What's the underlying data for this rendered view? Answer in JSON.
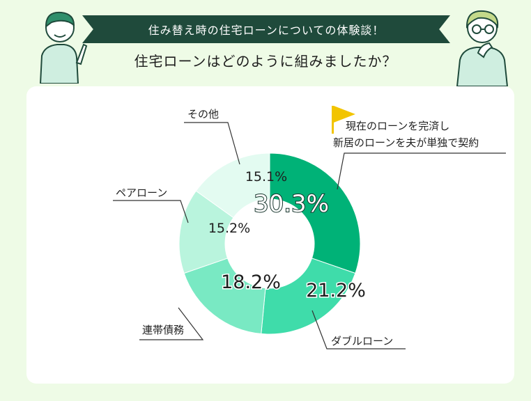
{
  "header": {
    "banner_text": "住み替え時の住宅ローンについての体験談！",
    "question": "住宅ローンはどのように組みましたか？"
  },
  "colors": {
    "background": "#eefbe6",
    "banner": "#1f4a3b",
    "flag": "#f2c400",
    "card": "#ffffff"
  },
  "chart_data": {
    "type": "pie",
    "donut": true,
    "title": "",
    "slices": [
      {
        "label_lines": [
          "現在のローンを完済し",
          "新居のローンを夫が単独で契約"
        ],
        "value": 30.3,
        "value_label": "30.3%",
        "color": "#00b277",
        "flag_icon": true
      },
      {
        "label_lines": [
          "ダブルローン"
        ],
        "value": 21.2,
        "value_label": "21.2%",
        "color": "#3fdcaa"
      },
      {
        "label_lines": [
          "連帯債務"
        ],
        "value": 18.2,
        "value_label": "18.2%",
        "color": "#79e9c3"
      },
      {
        "label_lines": [
          "ペアローン"
        ],
        "value": 15.2,
        "value_label": "15.2%",
        "color": "#b9f4dd"
      },
      {
        "label_lines": [
          "その他"
        ],
        "value": 15.1,
        "value_label": "15.1%",
        "color": "#e3fbf1"
      }
    ]
  }
}
